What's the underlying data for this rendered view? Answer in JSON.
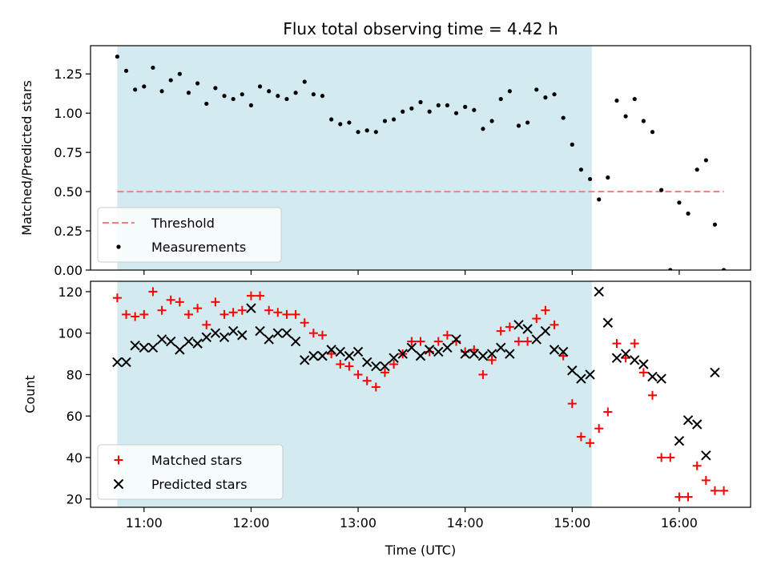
{
  "chart_data": [
    {
      "type": "scatter",
      "title": "Flux total observing time = 4.42 h",
      "xlabel": "",
      "ylabel": "Matched/Predicted stars",
      "xlim": [
        "10:30",
        "16:40"
      ],
      "ylim": [
        0,
        1.43
      ],
      "yticks": [
        "0.00",
        "0.25",
        "0.50",
        "0.75",
        "1.00",
        "1.25"
      ],
      "shaded_region": {
        "start": "10:45",
        "end": "15:11",
        "color": "#d3eaf0"
      },
      "threshold": {
        "name": "Threshold",
        "value": 0.5,
        "start": "10:45",
        "end": "16:25",
        "color": "#f47f7f"
      },
      "legend": {
        "placement": "lower-left",
        "entries": [
          "Threshold",
          "Measurements"
        ]
      },
      "series": [
        {
          "name": "Measurements",
          "color": "#000000",
          "x": [
            "10:45",
            "10:50",
            "10:55",
            "11:00",
            "11:05",
            "11:10",
            "11:15",
            "11:20",
            "11:25",
            "11:30",
            "11:35",
            "11:40",
            "11:45",
            "11:50",
            "11:55",
            "12:00",
            "12:05",
            "12:10",
            "12:15",
            "12:20",
            "12:25",
            "12:30",
            "12:35",
            "12:40",
            "12:45",
            "12:50",
            "12:55",
            "13:00",
            "13:05",
            "13:10",
            "13:15",
            "13:20",
            "13:25",
            "13:30",
            "13:35",
            "13:40",
            "13:45",
            "13:50",
            "13:55",
            "14:00",
            "14:05",
            "14:10",
            "14:15",
            "14:20",
            "14:25",
            "14:30",
            "14:35",
            "14:40",
            "14:45",
            "14:50",
            "14:55",
            "15:00",
            "15:05",
            "15:10",
            "15:15",
            "15:20",
            "15:25",
            "15:30",
            "15:35",
            "15:40",
            "15:45",
            "15:50",
            "15:55",
            "16:00",
            "16:05",
            "16:10",
            "16:15",
            "16:20",
            "16:25"
          ],
          "y": [
            1.36,
            1.27,
            1.15,
            1.17,
            1.29,
            1.14,
            1.21,
            1.25,
            1.13,
            1.19,
            1.06,
            1.16,
            1.11,
            1.09,
            1.12,
            1.05,
            1.17,
            1.14,
            1.11,
            1.09,
            1.13,
            1.2,
            1.12,
            1.11,
            0.96,
            0.93,
            0.94,
            0.88,
            0.89,
            0.88,
            0.95,
            0.96,
            1.01,
            1.03,
            1.07,
            1.01,
            1.05,
            1.05,
            1.0,
            1.04,
            1.02,
            0.9,
            0.95,
            1.09,
            1.14,
            0.92,
            0.94,
            1.15,
            1.1,
            1.12,
            0.97,
            0.8,
            0.64,
            0.58,
            0.45,
            0.59,
            1.08,
            0.98,
            1.09,
            0.95,
            0.88,
            0.51,
            0.0,
            0.43,
            0.36,
            0.64,
            0.7,
            0.29,
            0.0
          ]
        }
      ]
    },
    {
      "type": "scatter",
      "title": "",
      "xlabel": "Time (UTC)",
      "ylabel": "Count",
      "xlim": [
        "10:30",
        "16:40"
      ],
      "ylim": [
        16,
        125
      ],
      "xticks": [
        "11:00",
        "12:00",
        "13:00",
        "14:00",
        "15:00",
        "16:00"
      ],
      "yticks": [
        "20",
        "40",
        "60",
        "80",
        "100",
        "120"
      ],
      "shaded_region": {
        "start": "10:45",
        "end": "15:11",
        "color": "#d3eaf0"
      },
      "legend": {
        "placement": "lower-left",
        "entries": [
          "Matched stars",
          "Predicted stars"
        ]
      },
      "series": [
        {
          "name": "Matched stars",
          "marker": "+",
          "color": "#ff0000",
          "x": [
            "10:45",
            "10:50",
            "10:55",
            "11:00",
            "11:05",
            "11:10",
            "11:15",
            "11:20",
            "11:25",
            "11:30",
            "11:35",
            "11:40",
            "11:45",
            "11:50",
            "11:55",
            "12:00",
            "12:05",
            "12:10",
            "12:15",
            "12:20",
            "12:25",
            "12:30",
            "12:35",
            "12:40",
            "12:45",
            "12:50",
            "12:55",
            "13:00",
            "13:05",
            "13:10",
            "13:15",
            "13:20",
            "13:25",
            "13:30",
            "13:35",
            "13:40",
            "13:45",
            "13:50",
            "13:55",
            "14:00",
            "14:05",
            "14:10",
            "14:15",
            "14:20",
            "14:25",
            "14:30",
            "14:35",
            "14:40",
            "14:45",
            "14:50",
            "14:55",
            "15:00",
            "15:05",
            "15:10",
            "15:15",
            "15:20",
            "15:25",
            "15:30",
            "15:35",
            "15:40",
            "15:45",
            "15:50",
            "15:55",
            "16:00",
            "16:05",
            "16:10",
            "16:15",
            "16:20",
            "16:25"
          ],
          "y": [
            117,
            109,
            108,
            109,
            120,
            111,
            116,
            115,
            109,
            112,
            104,
            115,
            109,
            110,
            111,
            118,
            118,
            111,
            110,
            109,
            109,
            105,
            100,
            99,
            90,
            85,
            84,
            80,
            77,
            74,
            81,
            85,
            90,
            96,
            96,
            91,
            96,
            99,
            96,
            91,
            92,
            80,
            87,
            101,
            103,
            96,
            96,
            107,
            111,
            104,
            89,
            66,
            50,
            47,
            54,
            62,
            95,
            88,
            95,
            81,
            70,
            40,
            40,
            21,
            21,
            36,
            29,
            24,
            24
          ]
        },
        {
          "name": "Predicted stars",
          "marker": "x",
          "color": "#000000",
          "x": [
            "10:45",
            "10:50",
            "10:55",
            "11:00",
            "11:05",
            "11:10",
            "11:15",
            "11:20",
            "11:25",
            "11:30",
            "11:35",
            "11:40",
            "11:45",
            "11:50",
            "11:55",
            "12:00",
            "12:05",
            "12:10",
            "12:15",
            "12:20",
            "12:25",
            "12:30",
            "12:35",
            "12:40",
            "12:45",
            "12:50",
            "12:55",
            "13:00",
            "13:05",
            "13:10",
            "13:15",
            "13:20",
            "13:25",
            "13:30",
            "13:35",
            "13:40",
            "13:45",
            "13:50",
            "13:55",
            "14:00",
            "14:05",
            "14:10",
            "14:15",
            "14:20",
            "14:25",
            "14:30",
            "14:35",
            "14:40",
            "14:45",
            "14:50",
            "14:55",
            "15:00",
            "15:05",
            "15:10",
            "15:15",
            "15:20",
            "15:25",
            "15:30",
            "15:35",
            "15:40",
            "15:45",
            "15:50",
            "15:55",
            "16:00",
            "16:05",
            "16:10",
            "16:15",
            "16:20",
            "16:25"
          ],
          "y": [
            86,
            86,
            94,
            93,
            93,
            97,
            96,
            92,
            96,
            95,
            98,
            100,
            98,
            101,
            99,
            112,
            101,
            97,
            100,
            100,
            96,
            87,
            89,
            89,
            92,
            91,
            89,
            91,
            86,
            84,
            84,
            88,
            90,
            93,
            89,
            92,
            91,
            93,
            97,
            90,
            90,
            89,
            90,
            93,
            90,
            104,
            102,
            97,
            101,
            92,
            91,
            82,
            78,
            80,
            120,
            105,
            88,
            90,
            87,
            85,
            79,
            78,
            null,
            48,
            58,
            56,
            41,
            81,
            null
          ]
        }
      ]
    }
  ]
}
